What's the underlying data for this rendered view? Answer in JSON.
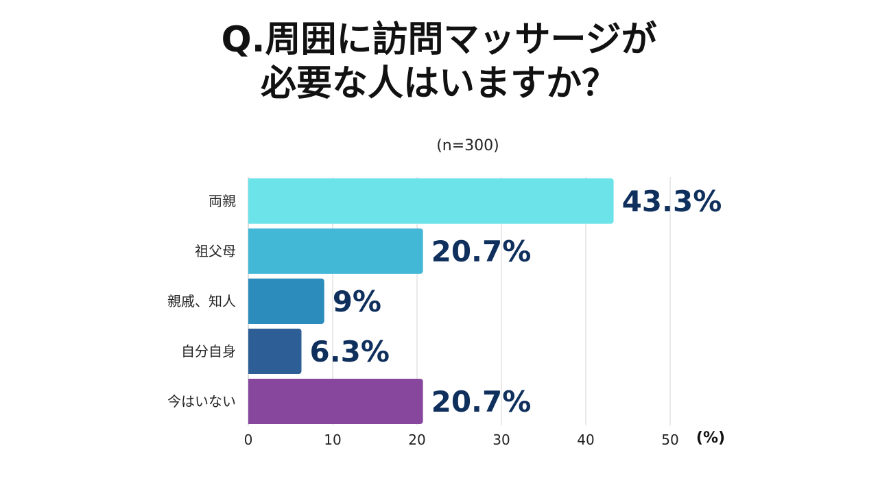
{
  "title": {
    "line1": "Q.周囲に訪問マッサージが",
    "line2": "必要な人はいますか？"
  },
  "sample_size": "(n=300)",
  "chart_data": {
    "type": "bar",
    "orientation": "horizontal",
    "categories": [
      "両親",
      "祖父母",
      "親戚、知人",
      "自分自身",
      "今はいない"
    ],
    "values": [
      43.3,
      20.7,
      9,
      6.3,
      20.7
    ],
    "value_labels": [
      "43.3%",
      "20.7%",
      "9%",
      "6.3%",
      "20.7%"
    ],
    "colors": [
      "#6be3e8",
      "#42b7d6",
      "#2c8cbc",
      "#2d5e96",
      "#87479c"
    ],
    "xlim": [
      0,
      50
    ],
    "xticks": [
      0,
      10,
      20,
      30,
      40,
      50
    ],
    "xlabel": "(%)",
    "grid": true
  }
}
